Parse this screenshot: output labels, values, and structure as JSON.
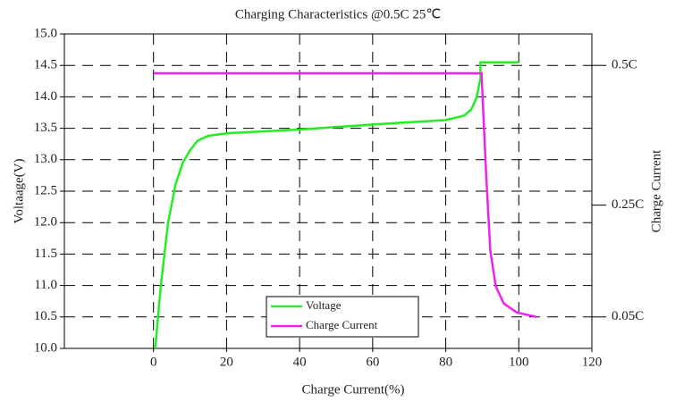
{
  "chart_data": {
    "type": "line",
    "title": "Charging Characteristics @0.5C 25℃",
    "xlabel": "Charge Current(%)",
    "ylabel": "Voltaage(V)",
    "y2label": "Charge Current",
    "xlim": [
      -24.4,
      120
    ],
    "xticks": [
      0,
      20,
      40,
      60,
      80,
      100,
      120
    ],
    "ylim": [
      10,
      15
    ],
    "yticks": [
      {
        "value": 10,
        "label": "10.0"
      },
      10.5,
      {
        "value": 11,
        "label": "11.0"
      },
      11.5,
      {
        "value": 12,
        "label": "12.0"
      },
      12.5,
      {
        "value": 13,
        "label": "13.0"
      },
      13.5,
      {
        "value": 14,
        "label": "14.0"
      },
      14.5,
      {
        "value": 15,
        "label": "15.0"
      }
    ],
    "y2lim": [
      -0.00625,
      0.55625
    ],
    "y2ticks": [
      {
        "value": 0.05,
        "label": "0.05C"
      },
      {
        "value": 0.25,
        "label": "0.25C"
      },
      {
        "value": 0.5,
        "label": "0.5C"
      }
    ],
    "grid": true,
    "legend": "lower center",
    "series": [
      {
        "name": "Voltage",
        "color": "#22ee22",
        "x": [
          0.5,
          2,
          4,
          6,
          8,
          10,
          12,
          15,
          20,
          40,
          60,
          80,
          85,
          87,
          88.5,
          89.5,
          89.5,
          100
        ],
        "values": [
          10.0,
          11.0,
          12.0,
          12.6,
          12.95,
          13.15,
          13.3,
          13.38,
          13.42,
          13.48,
          13.56,
          13.63,
          13.7,
          13.8,
          14.0,
          14.3,
          14.55,
          14.55
        ]
      },
      {
        "name": "Charge Current",
        "color": "#ee22ee",
        "axis": "y2",
        "x": [
          0,
          89.8,
          91,
          92.2,
          93.7,
          95.9,
          99.5,
          104.9
        ],
        "values": [
          0.486,
          0.486,
          0.313,
          0.169,
          0.105,
          0.074,
          0.058,
          0.05
        ]
      }
    ]
  }
}
